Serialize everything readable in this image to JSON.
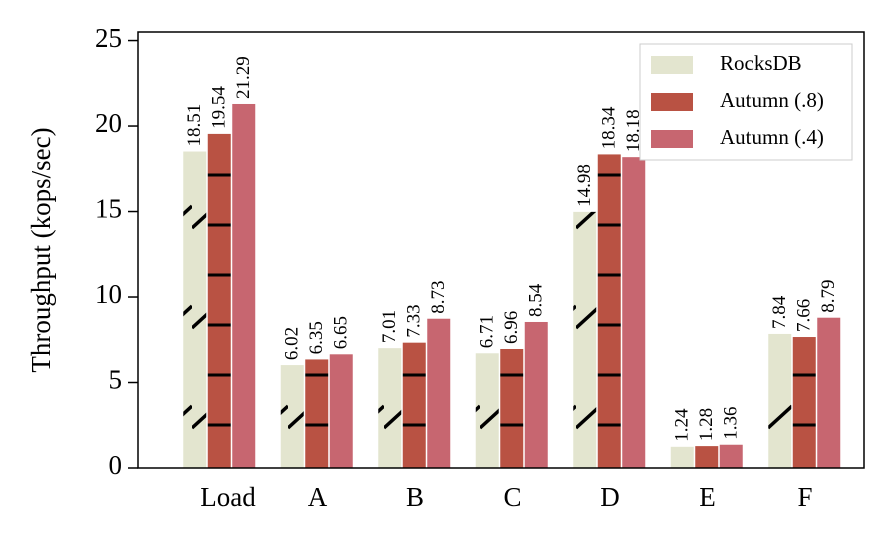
{
  "chart_data": {
    "type": "bar",
    "y_label": "Throughput (kops/sec)",
    "categories": [
      "Load",
      "A",
      "B",
      "C",
      "D",
      "E",
      "F"
    ],
    "series": [
      {
        "name": "RocksDB",
        "color": "#e3e5cf",
        "hatch": "/",
        "values": [
          18.51,
          6.02,
          7.01,
          6.71,
          14.98,
          1.24,
          7.84
        ]
      },
      {
        "name": "Autumn (.8)",
        "color": "#b95243",
        "hatch": "-",
        "values": [
          19.54,
          6.35,
          7.33,
          6.96,
          18.34,
          1.28,
          7.66
        ]
      },
      {
        "name": "Autumn (.4)",
        "color": "#c76670",
        "values": [
          21.29,
          6.65,
          8.73,
          8.54,
          18.18,
          1.36,
          8.79
        ]
      }
    ],
    "ylim": [
      0,
      25.5
    ],
    "yticks": [
      0,
      5,
      10,
      15,
      20,
      25
    ],
    "legend": "upper right"
  }
}
